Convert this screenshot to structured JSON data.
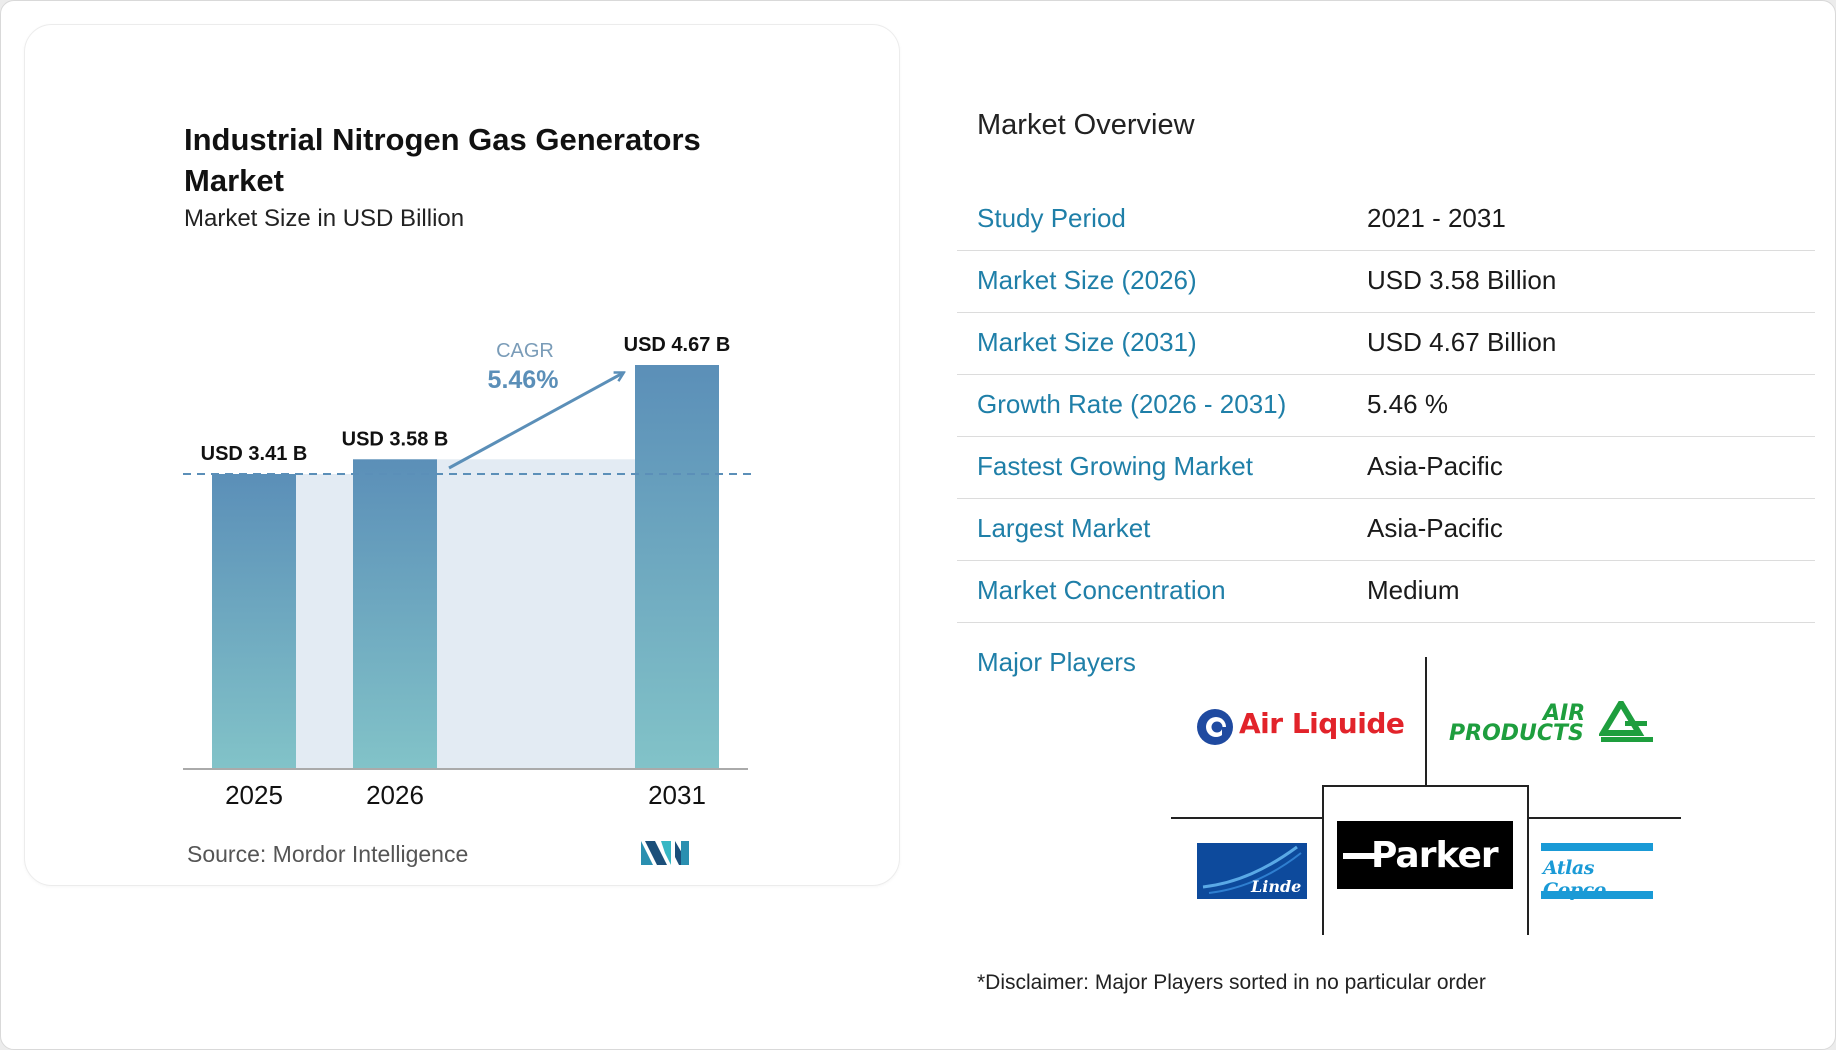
{
  "chart_data": {
    "type": "bar",
    "title": "Industrial Nitrogen Gas Generators Market",
    "subtitle": "Market Size in USD Billion",
    "categories": [
      "2025",
      "2026",
      "2031"
    ],
    "values": [
      3.41,
      3.58,
      4.67
    ],
    "value_labels": [
      "USD 3.41 B",
      "USD 3.58 B",
      "USD 4.67 B"
    ],
    "cagr_label": "CAGR",
    "cagr_value": "5.46%",
    "ylim": [
      0,
      4.67
    ],
    "reference_line_value": 3.41,
    "bar_gradient": {
      "top": "#5b8fb8",
      "bottom": "#82c3c8"
    },
    "band_color": "#e3ebf3",
    "accent_color": "#5b8fb8",
    "source": "Source:  Mordor Intelligence",
    "brand_icon": "mordor-intelligence-logo"
  },
  "overview": {
    "title": "Market Overview",
    "label_color": "#1f7fa8",
    "rows": [
      {
        "label": "Study Period",
        "value": "2021 - 2031"
      },
      {
        "label": "Market Size (2026)",
        "value": "USD 3.58 Billion"
      },
      {
        "label": "Market Size (2031)",
        "value": "USD 4.67 Billion"
      },
      {
        "label": "Growth Rate (2026 - 2031)",
        "value": "5.46 %"
      },
      {
        "label": "Fastest Growing Market",
        "value": "Asia-Pacific"
      },
      {
        "label": "Largest Market",
        "value": "Asia-Pacific"
      },
      {
        "label": "Market Concentration",
        "value": "Medium"
      }
    ],
    "major_players_label": "Major Players",
    "players": {
      "air_liquide": "Air Liquide",
      "air_products_top": "AIR",
      "air_products_bottom": "PRODUCTS",
      "linde": "Linde",
      "parker": "Parker",
      "atlas_copco": "Atlas Copco"
    },
    "disclaimer": "*Disclaimer: Major Players sorted in no particular order"
  }
}
